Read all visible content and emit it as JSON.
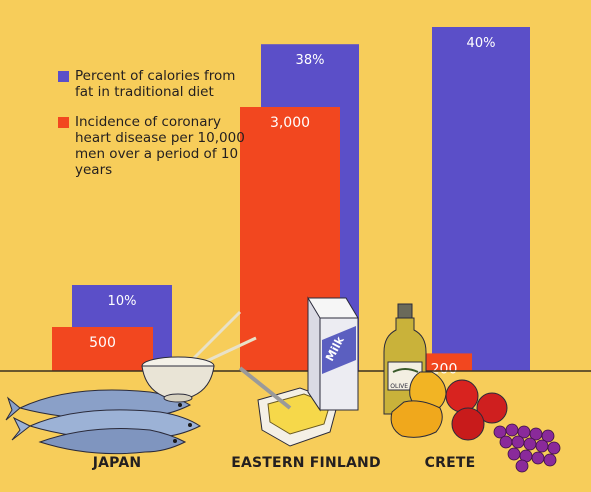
{
  "colors": {
    "background": "#f7cd5a",
    "fat": "#5b4fc8",
    "heart": "#f2471f",
    "label_text": "#ffffff",
    "ink": "#231f20"
  },
  "legend": {
    "items": [
      {
        "text": "Percent of calories from fat in traditional diet",
        "color": "#5b4fc8"
      },
      {
        "text": "Incidence of coronary heart disease per 10,000 men over a period of 10 years",
        "color": "#f2471f"
      }
    ]
  },
  "chart_data": {
    "type": "bar",
    "categories": [
      "JAPAN",
      "EASTERN FINLAND",
      "CRETE"
    ],
    "series": [
      {
        "key": "fat",
        "values": [
          10,
          38,
          40
        ],
        "labels": [
          "10%",
          "38%",
          "40%"
        ],
        "color": "#5b4fc8"
      },
      {
        "key": "heart",
        "values": [
          500,
          3000,
          200
        ],
        "labels": [
          "500",
          "3,000",
          "200"
        ],
        "color": "#f2471f"
      }
    ],
    "title": "",
    "xlabel": "",
    "ylabel": "",
    "legend_position": "top-left",
    "grid": false
  },
  "illustrations": [
    "fish-icon",
    "rice-bowl-icon",
    "butter-icon",
    "milk-carton-icon",
    "olive-oil-bottle-icon",
    "fruit-icon"
  ],
  "milk_label": "Milk",
  "olive_label": "OLIVE OIL"
}
